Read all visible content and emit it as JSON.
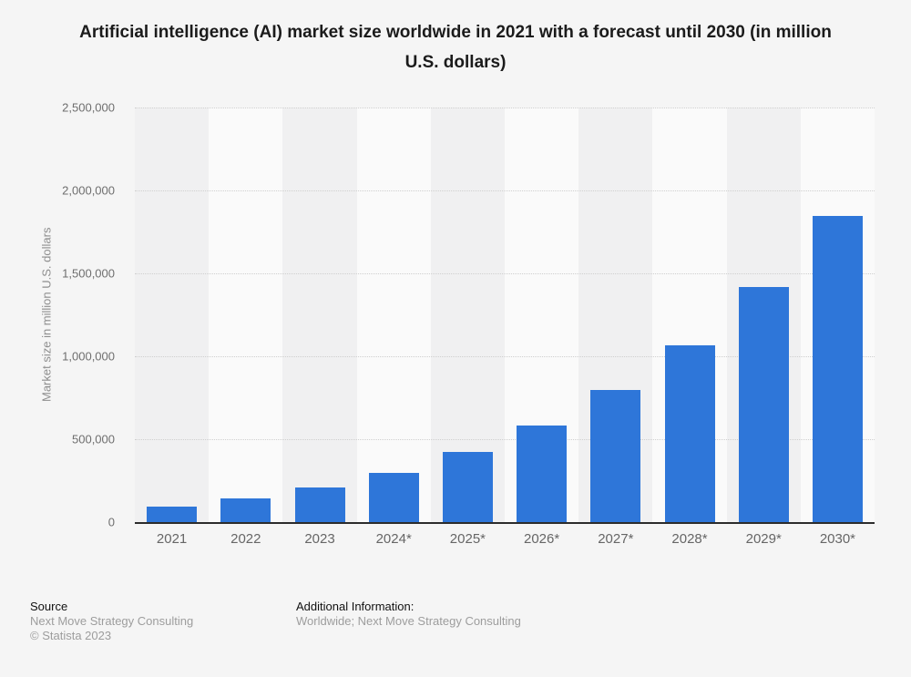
{
  "title": "Artificial intelligence (AI) market size worldwide in 2021 with a forecast until 2030 (in million U.S. dollars)",
  "y_axis_label": "Market size in million U.S. dollars",
  "footer": {
    "source_heading": "Source",
    "source_lines": [
      "Next Move Strategy Consulting",
      "© Statista 2023"
    ],
    "additional_heading": "Additional Information:",
    "additional_lines": [
      "Worldwide; Next Move Strategy Consulting"
    ]
  },
  "colors": {
    "bar": "#2e76d9",
    "axis_line": "#2c2c2c",
    "stripe_dark": "#f0f0f1",
    "stripe_light": "#fafafa",
    "background": "#f5f5f5",
    "gridline": "#cfcfcf",
    "tick_text": "#6e6e6e",
    "title_text": "#1b1b1b",
    "muted_text": "#9d9d9d"
  },
  "chart_data": {
    "type": "bar",
    "title": "Artificial intelligence (AI) market size worldwide in 2021 with a forecast until 2030 (in million U.S. dollars)",
    "categories": [
      "2021",
      "2022",
      "2023",
      "2024*",
      "2025*",
      "2026*",
      "2027*",
      "2028*",
      "2029*",
      "2030*"
    ],
    "values": [
      95600,
      142300,
      207900,
      298300,
      420500,
      582900,
      795400,
      1068300,
      1415800,
      1847500
    ],
    "xlabel": "",
    "ylabel": "Market size in million U.S. dollars",
    "ylim": [
      0,
      2500000
    ],
    "y_ticks": [
      0,
      500000,
      1000000,
      1500000,
      2000000,
      2500000
    ],
    "y_tick_labels": [
      "0",
      "500,000",
      "1,000,000",
      "1,500,000",
      "2,000,000",
      "2,500,000"
    ],
    "grid": "horizontal-dotted",
    "legend": "none",
    "forecast_marker": "*"
  }
}
